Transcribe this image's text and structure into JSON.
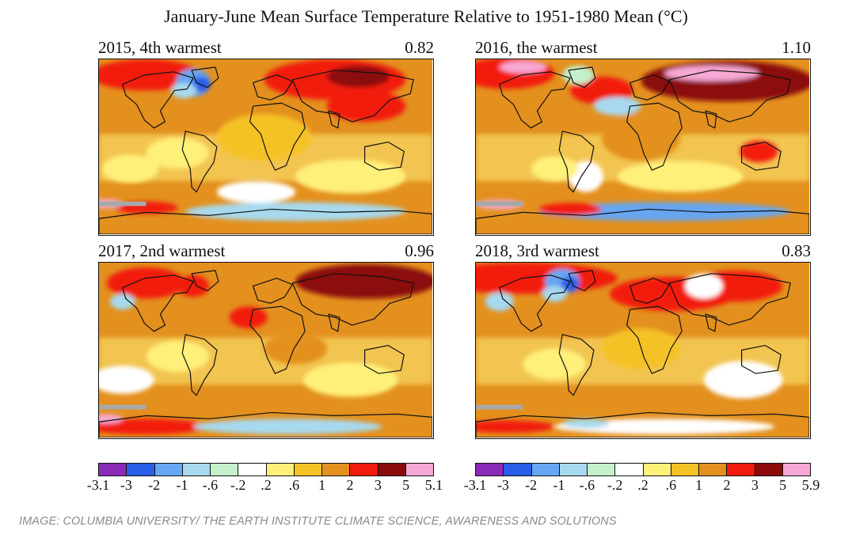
{
  "title": "January-June Mean Surface Temperature Relative to 1951-1980 Mean (°C)",
  "panels": [
    {
      "label": "2015, 4th warmest",
      "value": "0.82",
      "variant": 2015
    },
    {
      "label": "2016, the warmest",
      "value": "1.10",
      "variant": 2016
    },
    {
      "label": "2017, 2nd warmest",
      "value": "0.96",
      "variant": 2017
    },
    {
      "label": "2018, 3rd warmest",
      "value": "0.83",
      "variant": 2018
    }
  ],
  "colors": {
    "scale": [
      "#8a2bb8",
      "#2a5ee8",
      "#66a6f2",
      "#a7d9ee",
      "#c4f0cc",
      "#ffffff",
      "#fff07a",
      "#f5c225",
      "#e3901e",
      "#f21a0c",
      "#8b0a0a",
      "#f7a8d4"
    ],
    "grey": "#a8a8a8"
  },
  "scale_left": {
    "ticks": [
      "-3.1",
      "-3",
      "-2",
      "-1",
      "-.6",
      "-.2",
      ".2",
      ".6",
      "1",
      "2",
      "3",
      "5",
      "5.1"
    ]
  },
  "scale_right": {
    "ticks": [
      "-3.1",
      "-3",
      "-2",
      "-1",
      "-.6",
      "-.2",
      ".2",
      ".6",
      "1",
      "2",
      "3",
      "5",
      "5.9"
    ]
  },
  "credit": "IMAGE: COLUMBIA UNIVERSITY/ THE EARTH INSTITUTE CLIMATE SCIENCE, AWARENESS AND SOLUTIONS"
}
